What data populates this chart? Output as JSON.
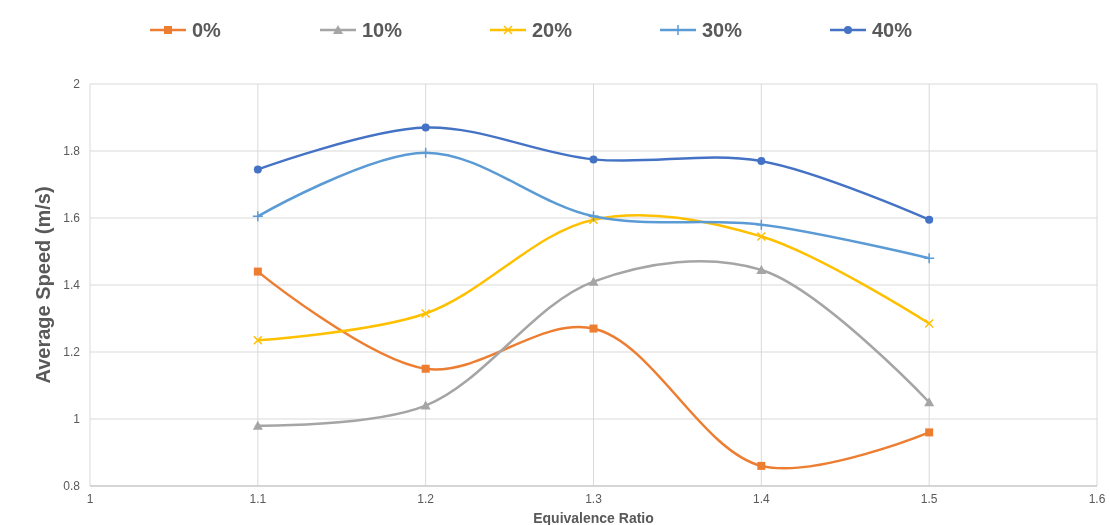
{
  "chart_data": {
    "type": "line",
    "xlabel": "Equivalence Ratio",
    "ylabel": "Average Speed (m/s)",
    "x": [
      1.1,
      1.2,
      1.3,
      1.4,
      1.5
    ],
    "xlim": [
      1,
      1.6
    ],
    "xticks": [
      1,
      1.1,
      1.2,
      1.3,
      1.4,
      1.5,
      1.6
    ],
    "ylim": [
      0.8,
      2
    ],
    "yticks": [
      0.8,
      1,
      1.2,
      1.4,
      1.6,
      1.8,
      2
    ],
    "grid": true,
    "legend": "top",
    "series": [
      {
        "name": "0%",
        "color": "#ed7d31",
        "marker": "square",
        "values": [
          1.44,
          1.15,
          1.27,
          0.86,
          0.96
        ]
      },
      {
        "name": "10%",
        "color": "#a5a5a5",
        "marker": "triangle",
        "values": [
          0.98,
          1.04,
          1.41,
          1.445,
          1.05
        ]
      },
      {
        "name": "20%",
        "color": "#ffc000",
        "marker": "x",
        "values": [
          1.235,
          1.315,
          1.595,
          1.545,
          1.285
        ]
      },
      {
        "name": "30%",
        "color": "#5b9bd5",
        "marker": "cross",
        "values": [
          1.605,
          1.795,
          1.605,
          1.58,
          1.48
        ]
      },
      {
        "name": "40%",
        "color": "#4472c4",
        "marker": "circle",
        "values": [
          1.745,
          1.87,
          1.775,
          1.77,
          1.595
        ]
      }
    ]
  }
}
